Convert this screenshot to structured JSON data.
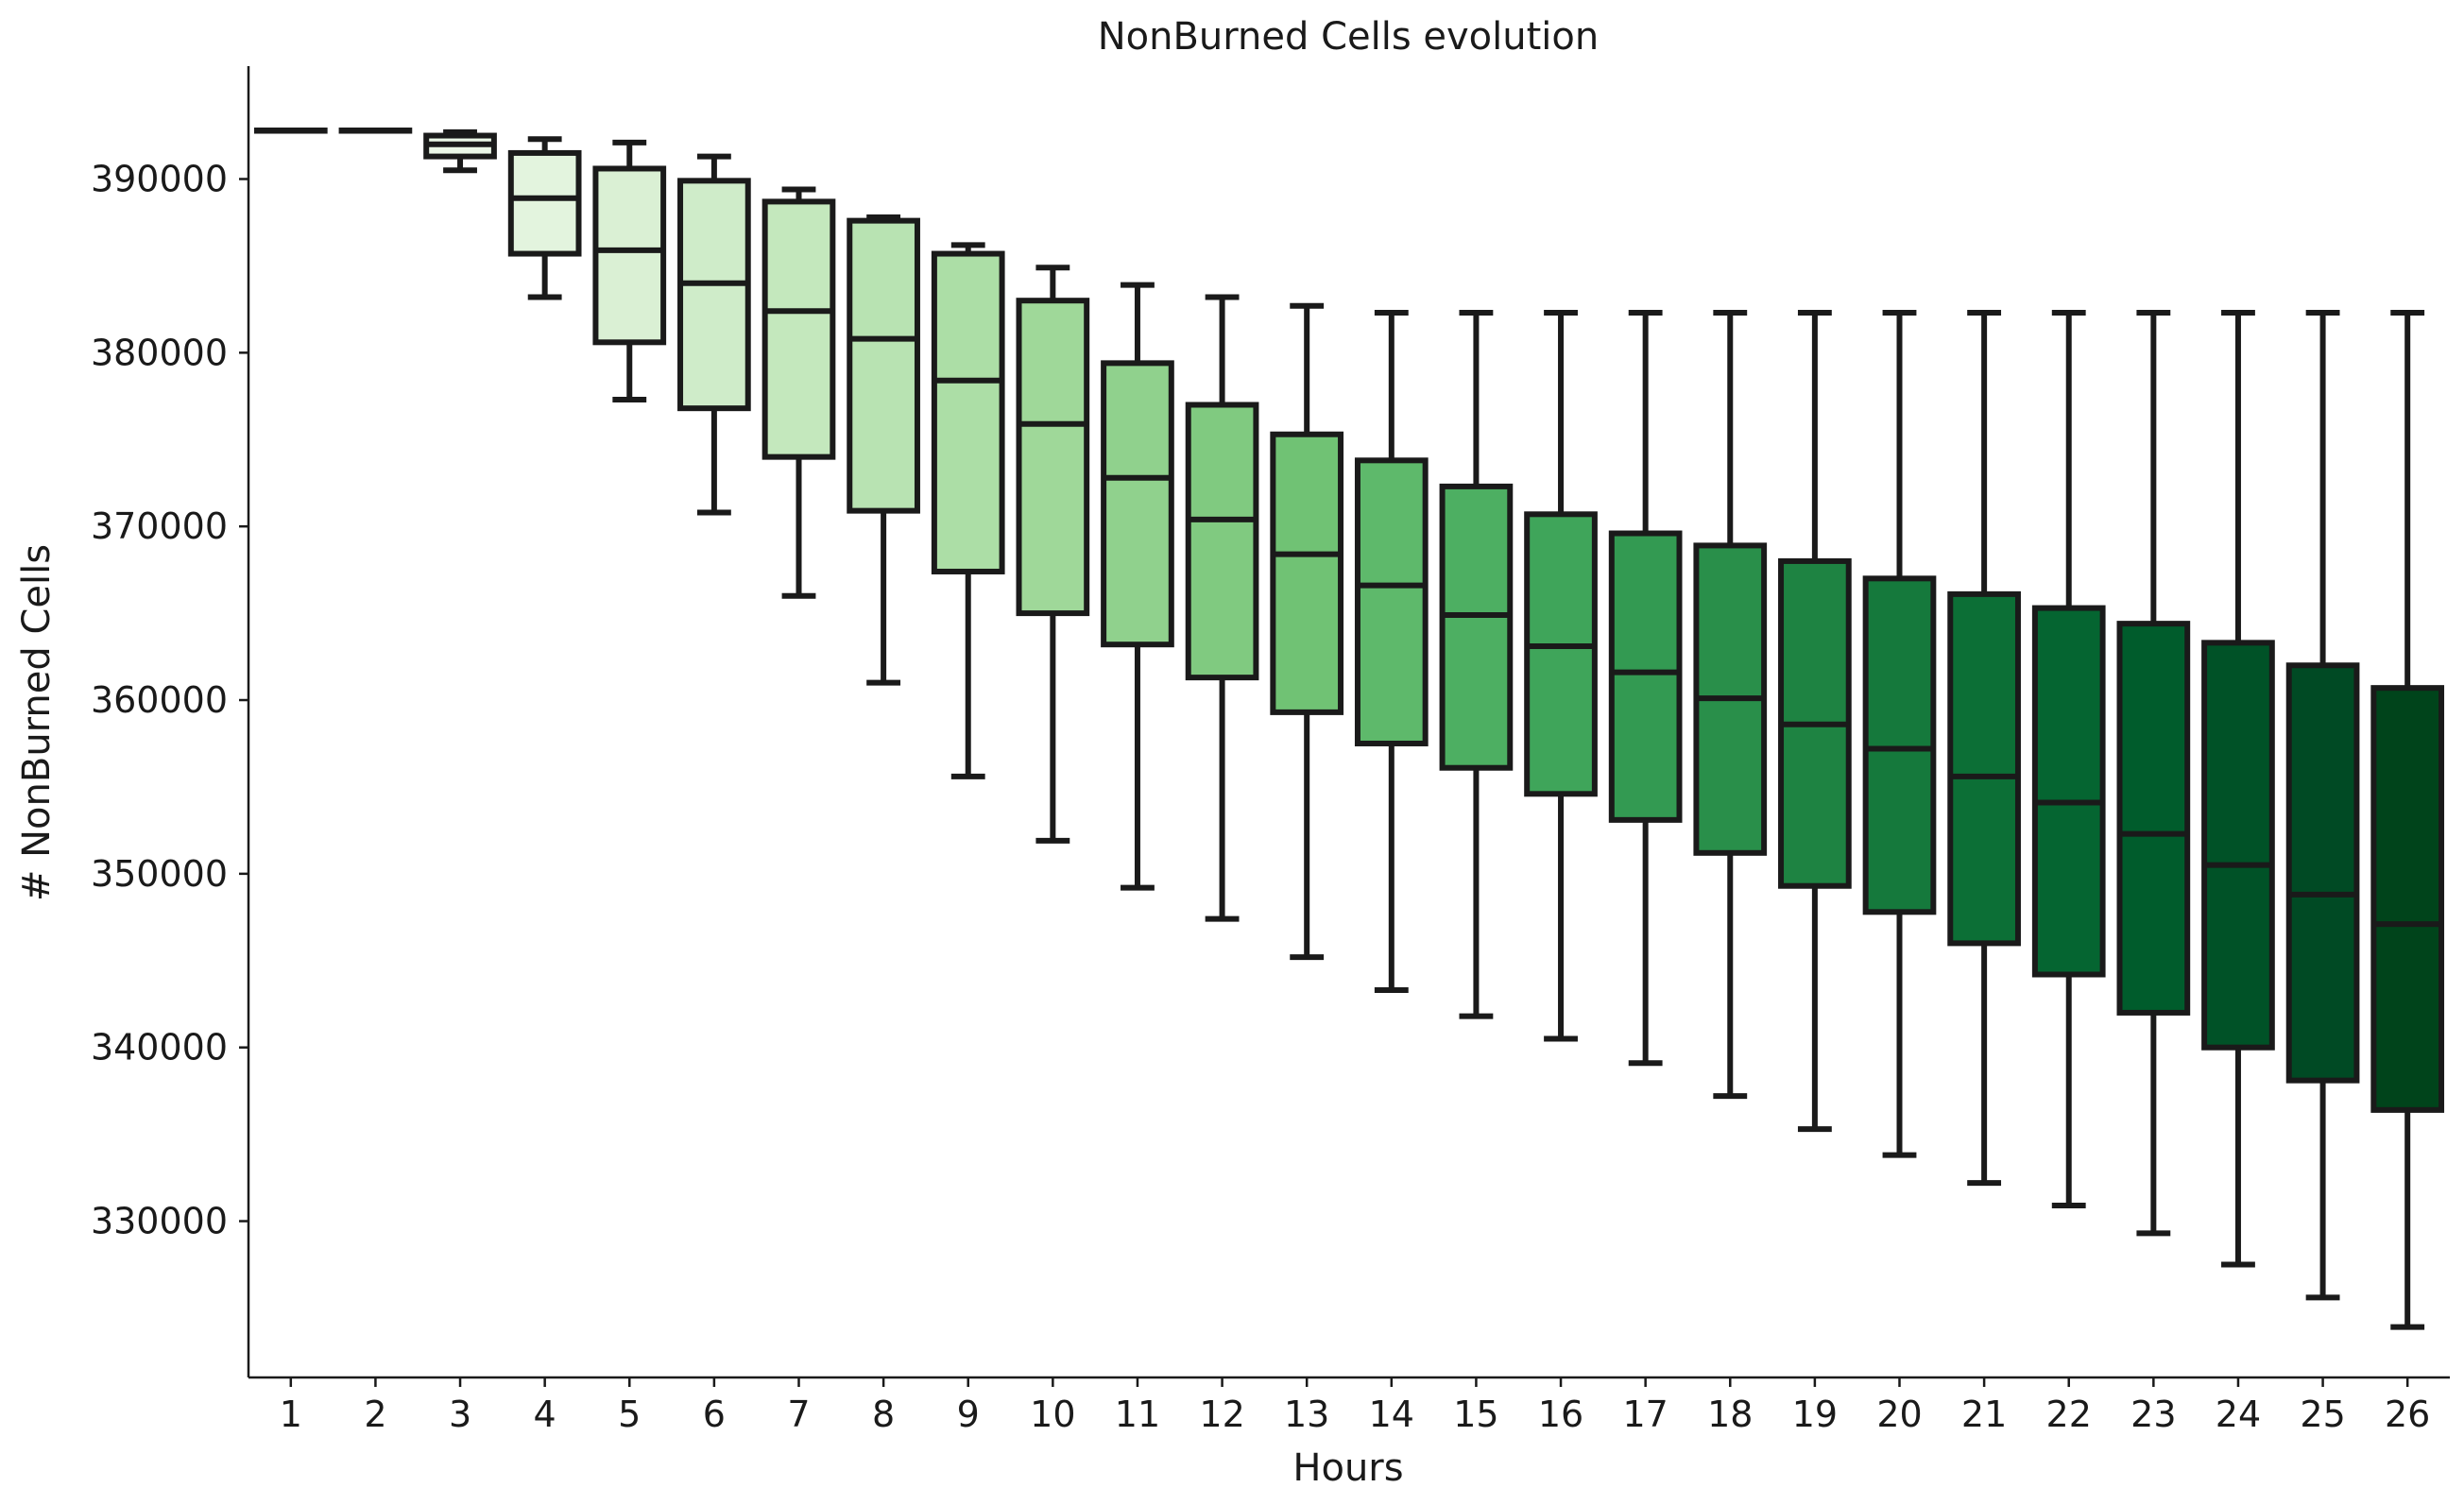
{
  "chart_data": {
    "type": "box",
    "title": "NonBurned Cells evolution",
    "xlabel": "Hours",
    "ylabel": "# NonBurned Cells",
    "ylim": [
      321000,
      396500
    ],
    "yticks": [
      330000,
      340000,
      350000,
      360000,
      370000,
      380000,
      390000
    ],
    "ytick_labels": [
      "330000",
      "340000",
      "350000",
      "360000",
      "370000",
      "380000",
      "390000"
    ],
    "grid": false,
    "legend": "none",
    "series": [
      {
        "hour": "1",
        "whisker_low": 392800,
        "q1": 392800,
        "median": 392800,
        "q3": 392800,
        "whisker_high": 392800,
        "color": "#f7fcf5"
      },
      {
        "hour": "2",
        "whisker_low": 392800,
        "q1": 392800,
        "median": 392800,
        "q3": 392800,
        "whisker_high": 392800,
        "color": "#f3faf0"
      },
      {
        "hour": "3",
        "whisker_low": 390500,
        "q1": 391300,
        "median": 392000,
        "q3": 392500,
        "whisker_high": 392700,
        "color": "#ebf7e7"
      },
      {
        "hour": "4",
        "whisker_low": 383200,
        "q1": 385700,
        "median": 388900,
        "q3": 391500,
        "whisker_high": 392300,
        "color": "#e3f4de"
      },
      {
        "hour": "5",
        "whisker_low": 377300,
        "q1": 380600,
        "median": 385900,
        "q3": 390600,
        "whisker_high": 392100,
        "color": "#daf0d4"
      },
      {
        "hour": "6",
        "whisker_low": 370800,
        "q1": 376800,
        "median": 384000,
        "q3": 389900,
        "whisker_high": 391300,
        "color": "#cfecc9"
      },
      {
        "hour": "7",
        "whisker_low": 366000,
        "q1": 374000,
        "median": 382400,
        "q3": 388700,
        "whisker_high": 389400,
        "color": "#c4e8bd"
      },
      {
        "hour": "8",
        "whisker_low": 361000,
        "q1": 370900,
        "median": 380800,
        "q3": 387600,
        "whisker_high": 387800,
        "color": "#b8e3b2"
      },
      {
        "hour": "9",
        "whisker_low": 355600,
        "q1": 367400,
        "median": 378400,
        "q3": 385700,
        "whisker_high": 386200,
        "color": "#acdea6"
      },
      {
        "hour": "10",
        "whisker_low": 351900,
        "q1": 365000,
        "median": 375900,
        "q3": 383000,
        "whisker_high": 384900,
        "color": "#9fd899"
      },
      {
        "hour": "11",
        "whisker_low": 349200,
        "q1": 363200,
        "median": 372800,
        "q3": 379400,
        "whisker_high": 383900,
        "color": "#90d18d"
      },
      {
        "hour": "12",
        "whisker_low": 347400,
        "q1": 361300,
        "median": 370400,
        "q3": 377000,
        "whisker_high": 383200,
        "color": "#80ca80"
      },
      {
        "hour": "13",
        "whisker_low": 345200,
        "q1": 359300,
        "median": 368400,
        "q3": 375300,
        "whisker_high": 382700,
        "color": "#70c274"
      },
      {
        "hour": "14",
        "whisker_low": 343300,
        "q1": 357500,
        "median": 366600,
        "q3": 373800,
        "whisker_high": 382300,
        "color": "#5eb96b"
      },
      {
        "hour": "15",
        "whisker_low": 341800,
        "q1": 356100,
        "median": 364900,
        "q3": 372300,
        "whisker_high": 382300,
        "color": "#4daf62"
      },
      {
        "hour": "16",
        "whisker_low": 340500,
        "q1": 354600,
        "median": 363100,
        "q3": 370700,
        "whisker_high": 382300,
        "color": "#3fa55a"
      },
      {
        "hour": "17",
        "whisker_low": 339100,
        "q1": 353100,
        "median": 361600,
        "q3": 369600,
        "whisker_high": 382300,
        "color": "#339a52"
      },
      {
        "hour": "18",
        "whisker_low": 337200,
        "q1": 351200,
        "median": 360100,
        "q3": 368900,
        "whisker_high": 382300,
        "color": "#298f4a"
      },
      {
        "hour": "19",
        "whisker_low": 335300,
        "q1": 349300,
        "median": 358600,
        "q3": 368000,
        "whisker_high": 382300,
        "color": "#1e8342"
      },
      {
        "hour": "20",
        "whisker_low": 333800,
        "q1": 347800,
        "median": 357200,
        "q3": 367000,
        "whisker_high": 382300,
        "color": "#15793c"
      },
      {
        "hour": "21",
        "whisker_low": 332200,
        "q1": 346000,
        "median": 355600,
        "q3": 366100,
        "whisker_high": 382300,
        "color": "#0c6f36"
      },
      {
        "hour": "22",
        "whisker_low": 330900,
        "q1": 344200,
        "median": 354100,
        "q3": 365300,
        "whisker_high": 382300,
        "color": "#056531"
      },
      {
        "hour": "23",
        "whisker_low": 329300,
        "q1": 342000,
        "median": 352300,
        "q3": 364400,
        "whisker_high": 382300,
        "color": "#005c2c"
      },
      {
        "hour": "24",
        "whisker_low": 327500,
        "q1": 340000,
        "median": 350500,
        "q3": 363300,
        "whisker_high": 382300,
        "color": "#005227"
      },
      {
        "hour": "25",
        "whisker_low": 325600,
        "q1": 338100,
        "median": 348800,
        "q3": 362000,
        "whisker_high": 382300,
        "color": "#004a24"
      },
      {
        "hour": "26",
        "whisker_low": 323900,
        "q1": 336400,
        "median": 347100,
        "q3": 360700,
        "whisker_high": 382300,
        "color": "#00441b"
      }
    ]
  }
}
